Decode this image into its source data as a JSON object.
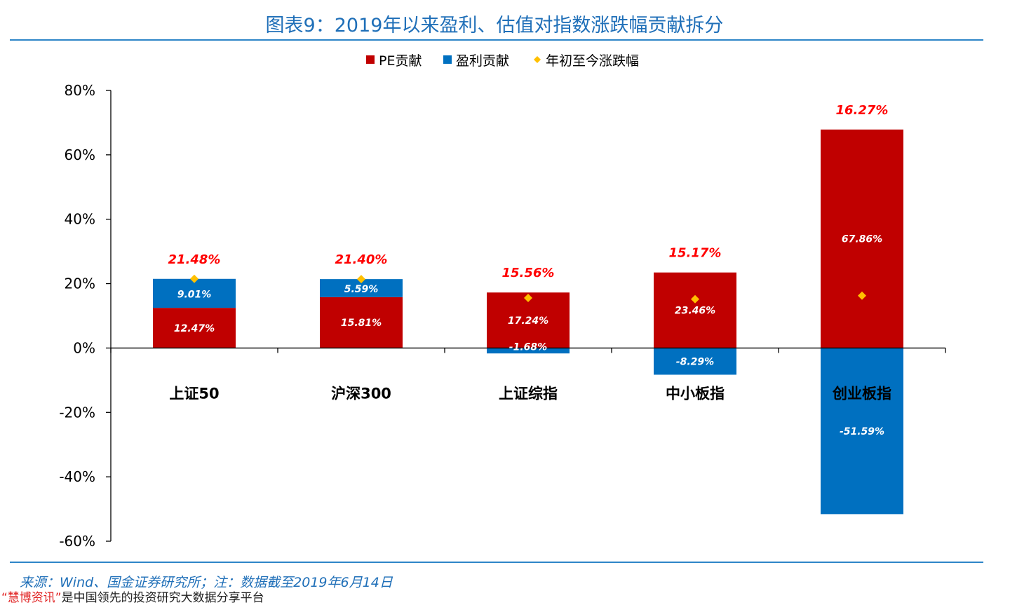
{
  "title": "图表9：2019年以来盈利、估值对指数涨跌幅贡献拆分",
  "colors": {
    "pe": "#c00000",
    "profit": "#0070c0",
    "ytd": "#ffc000",
    "total_label": "#ff0000"
  },
  "chart_data": {
    "type": "bar",
    "stacked": true,
    "categories": [
      "上证50",
      "沪深300",
      "上证综指",
      "中小板指",
      "创业板指"
    ],
    "series": [
      {
        "name": "PE贡献",
        "values": [
          12.47,
          15.81,
          17.24,
          23.46,
          67.86
        ],
        "labels": [
          "12.47%",
          "15.81%",
          "17.24%",
          "23.46%",
          "67.86%"
        ]
      },
      {
        "name": "盈利贡献",
        "values": [
          9.01,
          5.59,
          -1.68,
          -8.29,
          -51.59
        ],
        "labels": [
          "9.01%",
          "5.59%",
          "-1.68%",
          "-8.29%",
          "-51.59%"
        ]
      },
      {
        "name": "年初至今涨跌幅",
        "values": [
          21.48,
          21.4,
          15.56,
          15.17,
          16.27
        ],
        "labels": [
          "21.48%",
          "21.40%",
          "15.56%",
          "15.17%",
          "16.27%"
        ]
      }
    ],
    "ylim": [
      -60,
      80
    ],
    "yticks": [
      80,
      60,
      40,
      20,
      0,
      -20,
      -40,
      -60
    ],
    "ytick_labels": [
      "80%",
      "60%",
      "40%",
      "20%",
      "0%",
      "-20%",
      "-40%",
      "-60%"
    ],
    "legend_position": "top"
  },
  "source": "来源：Wind、国金证券研究所；注：数据截至2019年6月14日",
  "footer": {
    "brand": "“慧博资讯”",
    "text": "是中国领先的投资研究大数据分享平台"
  }
}
